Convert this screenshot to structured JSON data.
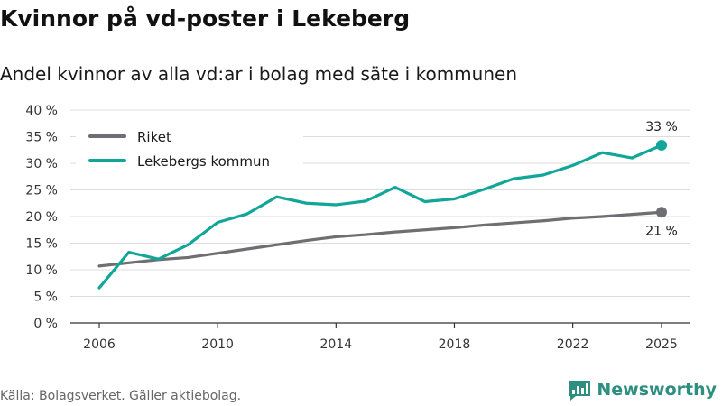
{
  "title": "Kvinnor på vd-poster i Lekeberg",
  "subtitle": "Andel kvinnor av alla vd:ar i bolag med säte i kommunen",
  "source": "Källa: Bolagsverket. Gäller aktiebolag.",
  "brand": "Newsworthy",
  "colors": {
    "riket": "#6e6e73",
    "lekeberg": "#12a59a",
    "grid": "#dddddd",
    "brand": "#2e8f80"
  },
  "chart_data": {
    "type": "line",
    "title": "Kvinnor på vd-poster i Lekeberg",
    "subtitle": "Andel kvinnor av alla vd:ar i bolag med säte i kommunen",
    "xlabel": "",
    "ylabel": "",
    "xlim": [
      2006,
      2025
    ],
    "ylim": [
      0,
      40
    ],
    "y_ticks": [
      0,
      5,
      10,
      15,
      20,
      25,
      30,
      35,
      40
    ],
    "y_tick_labels": [
      "0 %",
      "5 %",
      "10 %",
      "15 %",
      "20 %",
      "25 %",
      "30 %",
      "35 %",
      "40 %"
    ],
    "x_ticks": [
      2006,
      2010,
      2014,
      2018,
      2022,
      2025
    ],
    "x_tick_labels": [
      "2006",
      "2010",
      "2014",
      "2018",
      "2022",
      "2025"
    ],
    "grid": true,
    "legend_position": "top-left",
    "x": [
      2006,
      2007,
      2008,
      2009,
      2010,
      2011,
      2012,
      2013,
      2014,
      2015,
      2016,
      2017,
      2018,
      2019,
      2020,
      2021,
      2022,
      2023,
      2024,
      2025
    ],
    "series": [
      {
        "name": "Riket",
        "color": "#6e6e73",
        "values": [
          10.7,
          11.3,
          11.9,
          12.3,
          13.1,
          13.9,
          14.7,
          15.5,
          16.2,
          16.6,
          17.1,
          17.5,
          17.9,
          18.4,
          18.8,
          19.2,
          19.7,
          20.0,
          20.4,
          20.8
        ],
        "end_label": "21 %"
      },
      {
        "name": "Lekebergs kommun",
        "color": "#12a59a",
        "values": [
          6.6,
          13.3,
          12.0,
          14.7,
          18.9,
          20.5,
          23.7,
          22.5,
          22.2,
          22.9,
          25.5,
          22.8,
          23.3,
          25.1,
          27.1,
          27.8,
          29.6,
          32.0,
          31.0,
          33.4
        ],
        "end_label": "33 %"
      }
    ]
  }
}
